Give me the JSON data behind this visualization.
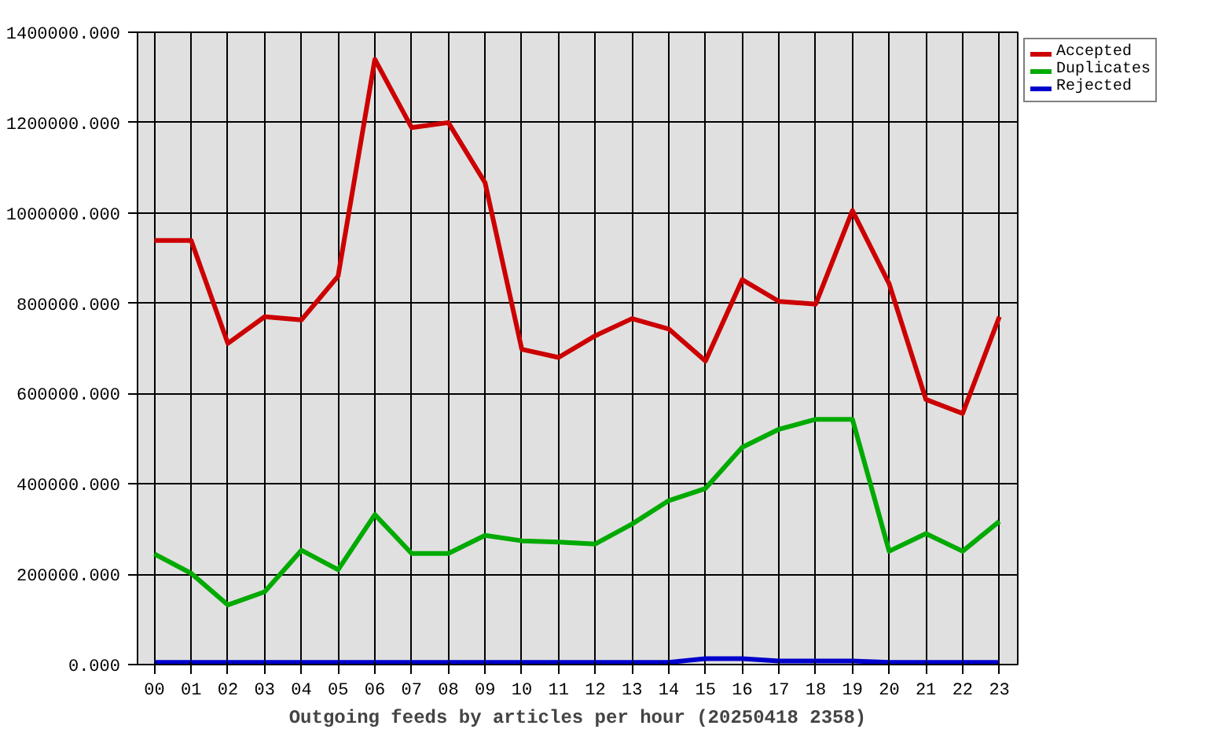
{
  "chart_data": {
    "type": "line",
    "xlabel": "Outgoing feeds by articles per hour (20250418 2358)",
    "categories": [
      "00",
      "01",
      "02",
      "03",
      "04",
      "05",
      "06",
      "07",
      "08",
      "09",
      "10",
      "11",
      "12",
      "13",
      "14",
      "15",
      "16",
      "17",
      "18",
      "19",
      "20",
      "21",
      "22",
      "23"
    ],
    "series": [
      {
        "name": "Accepted",
        "color": "#cc0000",
        "values": [
          939000,
          939000,
          711000,
          770000,
          763000,
          860000,
          1340000,
          1189000,
          1200000,
          1067000,
          698000,
          680000,
          728000,
          766000,
          743000,
          672000,
          852000,
          804000,
          798000,
          1005000,
          843000,
          587000,
          556000,
          770000
        ]
      },
      {
        "name": "Duplicates",
        "color": "#00aa00",
        "values": [
          245000,
          202000,
          132000,
          161000,
          253000,
          210000,
          332000,
          246000,
          246000,
          286000,
          274000,
          271000,
          267000,
          311000,
          363000,
          390000,
          481000,
          521000,
          543000,
          543000,
          251000,
          290000,
          251000,
          317000
        ]
      },
      {
        "name": "Rejected",
        "color": "#0000cc",
        "values": [
          5000,
          5000,
          5000,
          5000,
          5000,
          5000,
          5000,
          5000,
          5000,
          5000,
          5000,
          5000,
          5000,
          5000,
          5000,
          13000,
          13000,
          8000,
          8000,
          8000,
          5000,
          5000,
          5000,
          5000
        ]
      }
    ],
    "ylim": [
      0,
      1400000
    ],
    "yticks": [
      {
        "value": 0,
        "label": "0.000"
      },
      {
        "value": 200000,
        "label": "200000.000"
      },
      {
        "value": 400000,
        "label": "400000.000"
      },
      {
        "value": 600000,
        "label": "600000.000"
      },
      {
        "value": 800000,
        "label": "800000.000"
      },
      {
        "value": 1000000,
        "label": "1000000.000"
      },
      {
        "value": 1200000,
        "label": "1200000.000"
      },
      {
        "value": 1400000,
        "label": "1400000.000"
      }
    ],
    "grid": true,
    "legend": "top right",
    "line_style": "solid"
  }
}
